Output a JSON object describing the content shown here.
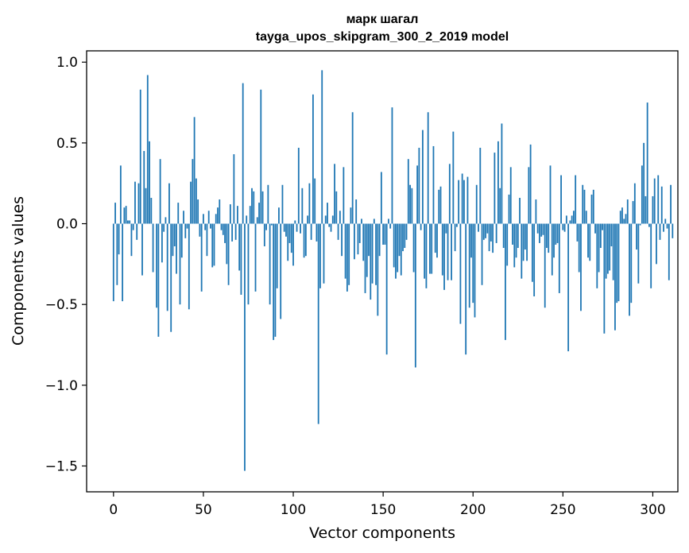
{
  "chart_data": {
    "type": "bar",
    "title": "марк шагал",
    "subtitle": "tayga_upos_skipgram_300_2_2019 model",
    "xlabel": "Vector components",
    "ylabel": "Components values",
    "xlim": [
      -14.95,
      313.95
    ],
    "ylim": [
      -1.66,
      1.07
    ],
    "xticks": [
      0,
      50,
      100,
      150,
      200,
      250,
      300
    ],
    "xtick_labels": [
      "0",
      "50",
      "100",
      "150",
      "200",
      "250",
      "300"
    ],
    "yticks": [
      -1.5,
      -1.0,
      -0.5,
      0.0,
      0.5,
      1.0
    ],
    "ytick_labels": [
      "−1.5",
      "−1.0",
      "−0.5",
      "0.0",
      "0.5",
      "1.0"
    ],
    "grid": false,
    "bar_color": "#1f77b4",
    "bar_width": 0.8,
    "values": [
      -0.48,
      0.13,
      -0.38,
      -0.19,
      0.36,
      -0.48,
      0.1,
      0.11,
      0.02,
      0.02,
      -0.2,
      -0.04,
      0.26,
      -0.1,
      0.25,
      0.83,
      -0.32,
      0.45,
      0.22,
      0.92,
      0.51,
      0.16,
      -0.3,
      0.0,
      -0.52,
      -0.7,
      0.4,
      -0.24,
      -0.05,
      0.04,
      -0.54,
      0.25,
      -0.67,
      -0.2,
      -0.14,
      -0.31,
      0.13,
      -0.5,
      -0.21,
      0.08,
      -0.09,
      -0.03,
      -0.53,
      0.26,
      0.4,
      0.66,
      0.28,
      0.15,
      -0.08,
      -0.42,
      0.06,
      -0.04,
      -0.2,
      0.08,
      -0.03,
      -0.27,
      -0.26,
      0.06,
      0.1,
      0.15,
      -0.04,
      -0.07,
      -0.12,
      -0.25,
      -0.38,
      0.12,
      -0.11,
      0.43,
      -0.1,
      0.11,
      -0.29,
      -0.44,
      0.87,
      -1.53,
      0.05,
      -0.5,
      0.11,
      0.22,
      0.2,
      -0.42,
      0.04,
      0.13,
      0.83,
      0.2,
      -0.14,
      -0.04,
      0.24,
      -0.5,
      -0.01,
      -0.72,
      -0.7,
      -0.4,
      0.1,
      -0.59,
      0.24,
      -0.05,
      -0.08,
      -0.23,
      -0.12,
      -0.18,
      -0.26,
      0.02,
      -0.05,
      0.47,
      -0.06,
      0.22,
      -0.21,
      -0.2,
      0.05,
      0.25,
      -0.1,
      0.8,
      0.28,
      -0.11,
      -1.24,
      -0.4,
      0.95,
      -0.37,
      0.05,
      0.13,
      -0.02,
      -0.05,
      0.05,
      0.37,
      0.2,
      -0.1,
      0.08,
      -0.2,
      0.35,
      -0.34,
      -0.42,
      -0.38,
      0.1,
      0.69,
      -0.22,
      0.15,
      -0.19,
      -0.12,
      0.03,
      -0.23,
      -0.43,
      -0.33,
      -0.2,
      -0.47,
      -0.37,
      0.03,
      -0.38,
      -0.57,
      -0.2,
      0.32,
      -0.13,
      -0.13,
      -0.81,
      0.03,
      -0.03,
      0.72,
      -0.27,
      -0.34,
      -0.3,
      -0.2,
      -0.32,
      -0.17,
      -0.15,
      -0.1,
      0.4,
      0.24,
      0.22,
      -0.3,
      -0.89,
      0.36,
      0.47,
      -0.04,
      0.58,
      -0.34,
      -0.4,
      0.69,
      -0.31,
      -0.31,
      0.48,
      -0.18,
      -0.21,
      0.21,
      0.23,
      -0.32,
      -0.41,
      -0.06,
      -0.35,
      0.37,
      -0.35,
      0.57,
      -0.17,
      -0.02,
      0.27,
      -0.62,
      0.31,
      0.27,
      -0.81,
      0.29,
      -0.52,
      -0.21,
      -0.49,
      -0.58,
      0.24,
      -0.05,
      0.47,
      -0.38,
      -0.1,
      -0.09,
      -0.06,
      -0.17,
      -0.11,
      -0.18,
      0.44,
      -0.12,
      0.51,
      0.22,
      0.62,
      -0.15,
      -0.72,
      -0.26,
      0.18,
      0.35,
      -0.13,
      -0.27,
      -0.21,
      -0.15,
      0.16,
      -0.34,
      -0.23,
      -0.16,
      -0.23,
      0.35,
      0.49,
      -0.36,
      -0.45,
      0.15,
      -0.06,
      -0.12,
      -0.08,
      -0.07,
      -0.52,
      -0.15,
      -0.18,
      0.36,
      -0.32,
      -0.21,
      -0.13,
      -0.12,
      -0.43,
      0.3,
      -0.04,
      -0.05,
      0.05,
      -0.79,
      0.02,
      0.05,
      0.08,
      0.3,
      -0.11,
      -0.3,
      -0.54,
      0.24,
      0.21,
      0.08,
      -0.21,
      -0.23,
      0.18,
      0.21,
      -0.06,
      -0.4,
      -0.3,
      -0.15,
      -0.04,
      -0.68,
      -0.34,
      -0.31,
      -0.29,
      -0.14,
      -0.35,
      -0.66,
      -0.49,
      -0.48,
      0.08,
      0.1,
      0.03,
      0.06,
      0.15,
      -0.57,
      -0.49,
      0.14,
      0.25,
      -0.16,
      -0.37,
      -0.01,
      0.36,
      0.5,
      0.17,
      0.75,
      -0.02,
      -0.4,
      0.17,
      0.28,
      -0.25,
      0.3,
      -0.1,
      0.23,
      -0.05,
      0.03,
      -0.03,
      -0.35,
      0.24,
      -0.09
    ]
  }
}
